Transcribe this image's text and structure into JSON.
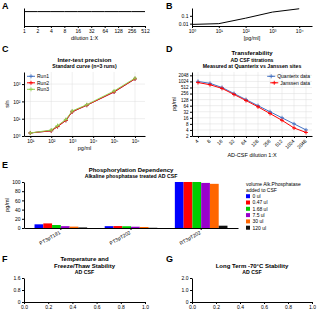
{
  "chart_data": [
    {
      "type": "line",
      "annotations": [
        "A"
      ],
      "xlabel": "dilution 1:X",
      "categories": [
        "1",
        "2",
        "4",
        "8",
        "16",
        "32",
        "64",
        "128",
        "256",
        "512"
      ],
      "values": [
        0.8,
        0.8,
        0.8,
        0.8,
        0.8,
        0.8,
        0.8,
        0.8,
        0.8,
        0.8
      ],
      "color": "#000000",
      "ylim": [
        0,
        1
      ],
      "tick_labels": "x"
    },
    {
      "type": "line",
      "annotations": [
        "B"
      ],
      "xlabel": "[pg/ml]",
      "x": [
        1,
        10,
        100,
        1000,
        10000
      ],
      "values": [
        0.008,
        0.01,
        0.05,
        0.3,
        0.8
      ],
      "color": "#000000",
      "log": true,
      "xlim": [
        1,
        30000
      ],
      "ylim": [
        0.005,
        1
      ],
      "xticks": [
        {
          "value": 1,
          "label": "10⁰"
        },
        {
          "value": 10,
          "label": "10¹"
        },
        {
          "value": 100,
          "label": "10²"
        },
        {
          "value": 1000,
          "label": "10³"
        },
        {
          "value": 10000,
          "label": "10⁴"
        }
      ],
      "yticks": [
        0.01,
        0.1
      ]
    },
    {
      "type": "line",
      "annotations": [
        "C"
      ],
      "title": "Inter-test precision",
      "subtitle": "Standard curve (n=3 runs)",
      "xlabel": "pg/ml",
      "ylabel": "s/n",
      "x": [
        10,
        100,
        200,
        500,
        1000,
        5000,
        100000,
        1000000
      ],
      "series": [
        {
          "name": "Run1",
          "color": "#4472C4",
          "values": [
            1.5,
            2.0,
            3.5,
            8,
            25,
            60,
            350,
            2000
          ]
        },
        {
          "name": "Run2",
          "color": "#FF0000",
          "values": [
            1.5,
            2.0,
            3.5,
            8,
            25,
            60,
            350,
            2000
          ]
        },
        {
          "name": "Run3",
          "color": "#92D050",
          "values": [
            1.5,
            2.2,
            4.0,
            9,
            28,
            65,
            400,
            2200
          ]
        }
      ],
      "marker": "plus",
      "log": true,
      "xlim": [
        5,
        3000000
      ],
      "ylim": [
        1,
        5000
      ],
      "xticks": [
        {
          "value": 10,
          "label": "10¹"
        },
        {
          "value": 100,
          "label": "10²"
        },
        {
          "value": 1000,
          "label": "10³"
        },
        {
          "value": 10000,
          "label": "10⁴"
        },
        {
          "value": 100000,
          "label": "10⁵"
        },
        {
          "value": 1000000,
          "label": "10⁶"
        }
      ],
      "yticks": [
        {
          "value": 1,
          "label": "10⁰"
        },
        {
          "value": 10,
          "label": "10¹"
        },
        {
          "value": 100,
          "label": "10²"
        },
        {
          "value": 1000,
          "label": "10³"
        }
      ],
      "grid": true,
      "legend": "upper left"
    },
    {
      "type": "line",
      "annotations": [
        "D"
      ],
      "title": "Transferability",
      "subtitle": "AD CSF titrations\nMeasured at Quanterix vs Janssen sites",
      "xlabel": "AD-CSF dilution 1:X",
      "ylabel": "pg/ml",
      "categories": [
        "4",
        "8",
        "16",
        "32",
        "64",
        "128",
        "256",
        "512",
        "1024",
        "2048"
      ],
      "series": [
        {
          "name": "Quanterix data",
          "color": "#4472C4",
          "values": [
            1024,
            820,
            512,
            256,
            128,
            64,
            32,
            16,
            8,
            4
          ]
        },
        {
          "name": "Janssen data",
          "color": "#FF0000",
          "values": [
            900,
            700,
            460,
            230,
            115,
            56,
            26,
            12,
            5,
            3
          ]
        }
      ],
      "marker": "plus",
      "log": "y",
      "ylim": [
        2,
        3000
      ],
      "yticks": [
        2,
        4,
        8,
        16,
        32,
        64,
        128,
        256,
        512,
        1024,
        2048
      ],
      "grid": true,
      "legend": "upper right"
    },
    {
      "type": "bar",
      "annotations": [
        "E"
      ],
      "title": "Phosphorylation Dependency",
      "subtitle": "Alkaline phosphatase treated AD CSF",
      "ylabel": "pg/ml",
      "categories": [
        "PT3pT181",
        "PT3pT202",
        "RT3pT202"
      ],
      "series": [
        {
          "name": "0 ul",
          "color": "#0000FF",
          "values": [
            8.0,
            4.0,
            100
          ]
        },
        {
          "name": "0.47 ul",
          "color": "#FF0000",
          "values": [
            10.0,
            4.2,
            100
          ]
        },
        {
          "name": "1.68 ul",
          "color": "#00CC00",
          "values": [
            6.5,
            3.8,
            100
          ]
        },
        {
          "name": "7.5 ul",
          "color": "#9900CC",
          "values": [
            4.0,
            2.8,
            98
          ]
        },
        {
          "name": "30 ul",
          "color": "#FF6600",
          "values": [
            3.0,
            2.2,
            96
          ]
        },
        {
          "name": "120 ul",
          "color": "#111111",
          "values": [
            1.2,
            0.5,
            5
          ]
        }
      ],
      "legend": "right",
      "legend_title": "volume Alk.Phosphatase\nadded to CSF",
      "ylim": [
        0,
        100
      ],
      "yticks": [
        0,
        20,
        40,
        60,
        80,
        100
      ]
    },
    {
      "type": "line",
      "annotations": [
        "F"
      ],
      "title": "Temperature and\nFreeze/Thaw Stability",
      "subtitle": "AD CSF",
      "xlim": [
        0,
        1
      ],
      "ylim": [
        0,
        1.6
      ],
      "xticks": [
        {
          "value": 0,
          "label": "0.0"
        },
        0.2,
        0.4,
        0.6,
        0.8,
        {
          "value": 1,
          "label": "1.0"
        }
      ],
      "yticks": [
        0,
        0.8,
        1.6
      ]
    },
    {
      "type": "line",
      "annotations": [
        "G"
      ],
      "title": "Long Term -70°C Stability",
      "subtitle": "AD CSF",
      "xlim": [
        0,
        1
      ],
      "ylim": [
        0,
        2.0
      ],
      "xticks": [
        {
          "value": 0,
          "label": "0.0"
        },
        0.2,
        0.4,
        0.6,
        0.8,
        {
          "value": 1,
          "label": "1.0"
        }
      ],
      "yticks": [
        0,
        {
          "value": 1,
          "label": "1.0"
        },
        {
          "value": 2,
          "label": "2.0"
        }
      ]
    }
  ]
}
